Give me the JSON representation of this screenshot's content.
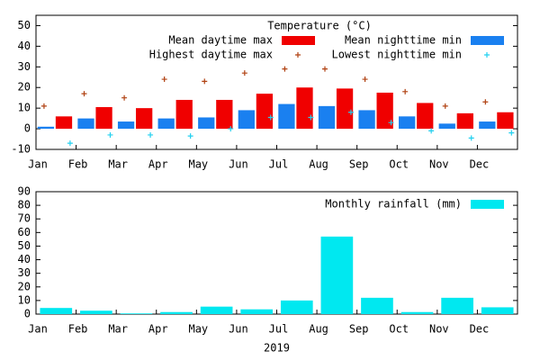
{
  "chart_data": [
    {
      "type": "bar",
      "legend_title": "Temperature (°C)",
      "categories": [
        "Jan",
        "Feb",
        "Mar",
        "Apr",
        "May",
        "Jun",
        "Jul",
        "Aug",
        "Sep",
        "Oct",
        "Nov",
        "Dec"
      ],
      "ylim": [
        -10,
        55
      ],
      "yticks": [
        -10,
        0,
        10,
        20,
        30,
        40,
        50
      ],
      "series": [
        {
          "name": "Mean nighttime min",
          "color": "#1a80f0",
          "mode": "bar",
          "values": [
            1,
            5,
            3.5,
            5,
            5.5,
            9,
            12,
            11,
            9,
            6,
            2.5,
            3.5
          ]
        },
        {
          "name": "Mean daytime max",
          "color": "#f00000",
          "mode": "bar",
          "values": [
            6,
            10.5,
            10,
            14,
            14,
            17,
            20,
            19.5,
            17.5,
            12.5,
            7.5,
            8
          ]
        },
        {
          "name": "Highest daytime max",
          "color": "#b04010",
          "mode": "point",
          "values": [
            11,
            17,
            15,
            24,
            23,
            27,
            29,
            29,
            24,
            18,
            11,
            13
          ]
        },
        {
          "name": "Lowest nighttime min",
          "color": "#20d0f0",
          "mode": "point",
          "values": [
            -7,
            -3,
            -3,
            -3.5,
            0,
            5.5,
            5.5,
            8,
            3,
            -1,
            -4.5,
            -2
          ]
        }
      ]
    },
    {
      "type": "bar",
      "categories": [
        "Jan",
        "Feb",
        "Mar",
        "Apr",
        "May",
        "Jun",
        "Jul",
        "Aug",
        "Sep",
        "Oct",
        "Nov",
        "Dec"
      ],
      "xlabel": "2019",
      "ylim": [
        0,
        90
      ],
      "yticks": [
        0,
        10,
        20,
        30,
        40,
        50,
        60,
        70,
        80,
        90
      ],
      "series": [
        {
          "name": "Monthly rainfall (mm)",
          "color": "#00e8f0",
          "mode": "bar",
          "values": [
            4.5,
            2.5,
            0.5,
            1.5,
            5.5,
            3.5,
            10,
            57,
            12,
            1.5,
            12,
            5
          ]
        }
      ]
    }
  ]
}
